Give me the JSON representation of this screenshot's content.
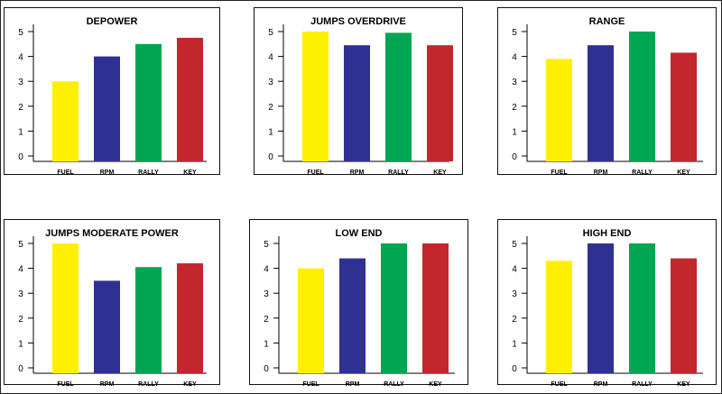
{
  "chart_data": [
    {
      "type": "bar",
      "title": "DEPOWER",
      "categories": [
        "FUEL",
        "RPM",
        "RALLY",
        "KEY"
      ],
      "values": [
        3.0,
        4.0,
        4.5,
        4.75
      ],
      "ylim": [
        0,
        5
      ],
      "yticks": [
        "0",
        "1",
        "2",
        "3",
        "4",
        "5"
      ],
      "colors": [
        "#ffef00",
        "#2e3192",
        "#00a651",
        "#c1272d"
      ],
      "grid": false
    },
    {
      "type": "bar",
      "title": "JUMPS OVERDRIVE",
      "categories": [
        "FUEL",
        "RPM",
        "RALLY",
        "KEY"
      ],
      "values": [
        5.0,
        4.45,
        4.95,
        4.45
      ],
      "ylim": [
        0,
        5
      ],
      "yticks": [
        "0",
        "1",
        "2",
        "3",
        "4",
        "5"
      ],
      "colors": [
        "#ffef00",
        "#2e3192",
        "#00a651",
        "#c1272d"
      ],
      "grid": false
    },
    {
      "type": "bar",
      "title": "RANGE",
      "categories": [
        "FUEL",
        "RPM",
        "RALLY",
        "KEY"
      ],
      "values": [
        3.9,
        4.45,
        5.0,
        4.15
      ],
      "ylim": [
        0,
        5
      ],
      "yticks": [
        "0",
        "1",
        "2",
        "3",
        "4",
        "5"
      ],
      "colors": [
        "#ffef00",
        "#2e3192",
        "#00a651",
        "#c1272d"
      ],
      "grid": false
    },
    {
      "type": "bar",
      "title": "JUMPS MODERATE POWER",
      "categories": [
        "FUEL",
        "RPM",
        "RALLY",
        "KEY"
      ],
      "values": [
        5.0,
        3.5,
        4.05,
        4.2
      ],
      "ylim": [
        0,
        5
      ],
      "yticks": [
        "0",
        "1",
        "2",
        "3",
        "4",
        "5"
      ],
      "colors": [
        "#ffef00",
        "#2e3192",
        "#00a651",
        "#c1272d"
      ],
      "grid": false
    },
    {
      "type": "bar",
      "title": "LOW  END",
      "categories": [
        "FUEL",
        "RPM",
        "RALLY",
        "KEY"
      ],
      "values": [
        4.0,
        4.4,
        5.0,
        5.0
      ],
      "ylim": [
        0,
        5
      ],
      "yticks": [
        "0",
        "1",
        "2",
        "3",
        "4",
        "5"
      ],
      "colors": [
        "#ffef00",
        "#2e3192",
        "#00a651",
        "#c1272d"
      ],
      "grid": false
    },
    {
      "type": "bar",
      "title": "HIGH  END",
      "categories": [
        "FUEL",
        "RPM",
        "RALLY",
        "KEY"
      ],
      "values": [
        4.3,
        5.0,
        5.0,
        4.4
      ],
      "ylim": [
        0,
        5
      ],
      "yticks": [
        "0",
        "1",
        "2",
        "3",
        "4",
        "5"
      ],
      "colors": [
        "#ffef00",
        "#2e3192",
        "#00a651",
        "#c1272d"
      ],
      "grid": false
    }
  ]
}
